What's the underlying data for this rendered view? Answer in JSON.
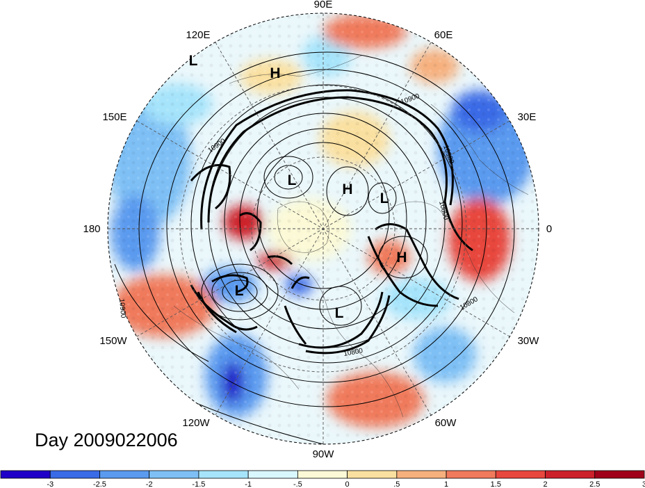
{
  "title": "Day 2009022006",
  "longitude_labels": [
    "90E",
    "60E",
    "30E",
    "0",
    "30W",
    "60W",
    "90W",
    "120W",
    "150W",
    "180",
    "150E",
    "120E"
  ],
  "pressure_centers": [
    "L",
    "H",
    "L",
    "H",
    "L",
    "H",
    "L",
    "L"
  ],
  "contour_labels": [
    "10900",
    "10900",
    "10900",
    "10800",
    "10800",
    "10900",
    "10800"
  ],
  "colorbar": {
    "tick_labels": [
      "-3",
      "-2.5",
      "-2",
      "-1.5",
      "-1",
      "-.5",
      "0",
      ".5",
      "1",
      "1.5",
      "2",
      "2.5",
      "3"
    ],
    "colors": [
      "#1f00c8",
      "#3a6be6",
      "#5a9aef",
      "#7ec0f5",
      "#a6e4fb",
      "#d9f7ff",
      "#fbf9d6",
      "#fae0a0",
      "#f6b07e",
      "#f07a5c",
      "#e8473e",
      "#cc202b",
      "#a0001a"
    ]
  }
}
